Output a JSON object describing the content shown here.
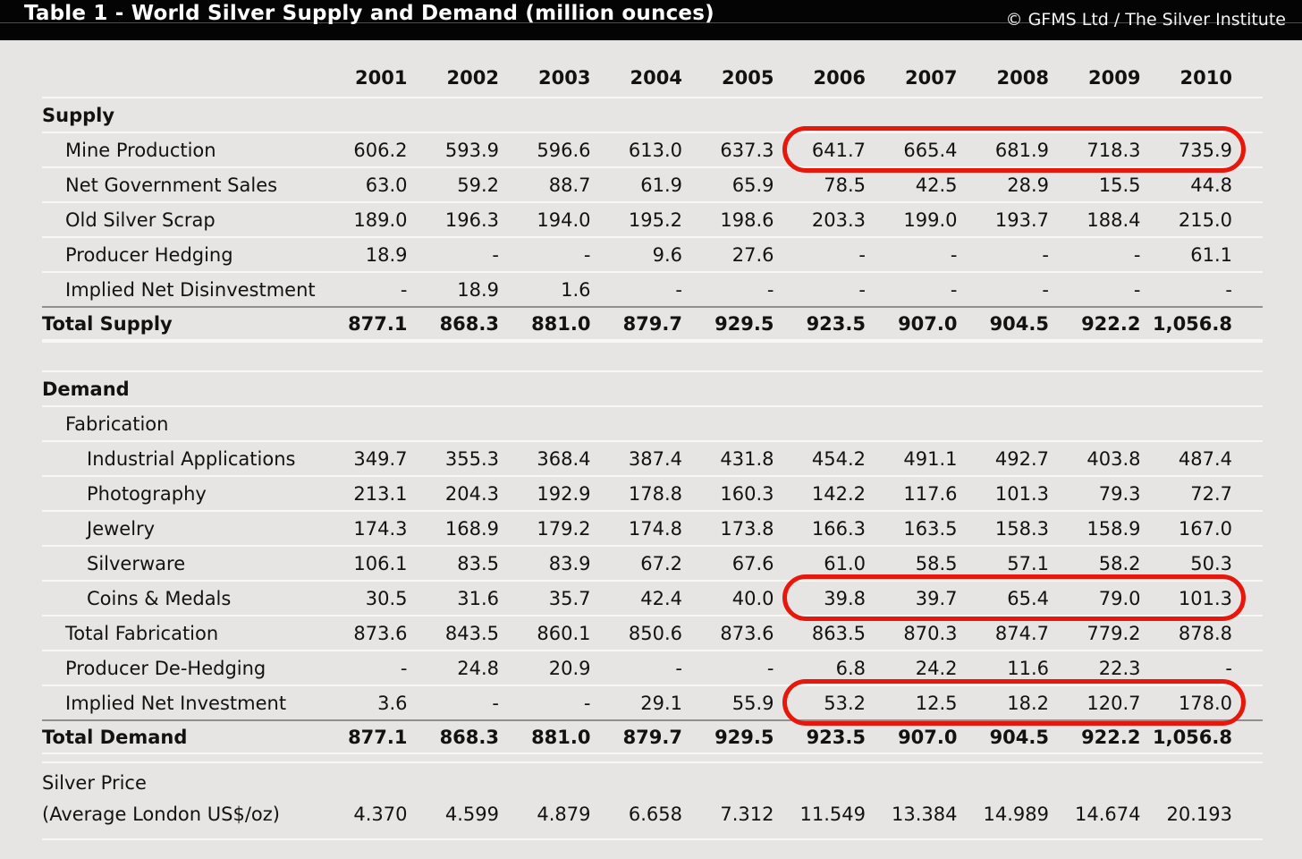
{
  "header": {
    "title": "Table 1 - World Silver Supply and Demand (million ounces)",
    "copyright": "© GFMS Ltd / The Silver Institute"
  },
  "highlight": {
    "color": "#e8170c",
    "note": "red oval annotations circle the 2006-2010 values of three rows",
    "circled_rows": [
      "Mine Production",
      "Coins & Medals",
      "Implied Net Investment"
    ]
  },
  "chart_data": {
    "type": "table",
    "title": "Table 1 - World Silver Supply and Demand (million ounces)",
    "columns": [
      "2001",
      "2002",
      "2003",
      "2004",
      "2005",
      "2006",
      "2007",
      "2008",
      "2009",
      "2010"
    ],
    "rows": [
      {
        "label": "Supply",
        "style": "section",
        "indent": 0,
        "values": []
      },
      {
        "label": "Mine Production",
        "style": "data",
        "indent": 1,
        "highlight_2006_2010": true,
        "values": [
          "606.2",
          "593.9",
          "596.6",
          "613.0",
          "637.3",
          "641.7",
          "665.4",
          "681.9",
          "718.3",
          "735.9"
        ]
      },
      {
        "label": "Net Government Sales",
        "style": "data",
        "indent": 1,
        "values": [
          "63.0",
          "59.2",
          "88.7",
          "61.9",
          "65.9",
          "78.5",
          "42.5",
          "28.9",
          "15.5",
          "44.8"
        ]
      },
      {
        "label": "Old Silver Scrap",
        "style": "data",
        "indent": 1,
        "values": [
          "189.0",
          "196.3",
          "194.0",
          "195.2",
          "198.6",
          "203.3",
          "199.0",
          "193.7",
          "188.4",
          "215.0"
        ]
      },
      {
        "label": "Producer Hedging",
        "style": "data",
        "indent": 1,
        "values": [
          "18.9",
          "-",
          "-",
          "9.6",
          "27.6",
          "-",
          "-",
          "-",
          "-",
          "61.1"
        ]
      },
      {
        "label": "Implied Net Disinvestment",
        "style": "data",
        "indent": 1,
        "values": [
          "-",
          "18.9",
          "1.6",
          "-",
          "-",
          "-",
          "-",
          "-",
          "-",
          "-"
        ]
      },
      {
        "label": "Total Supply",
        "style": "total",
        "indent": 0,
        "values": [
          "877.1",
          "868.3",
          "881.0",
          "879.7",
          "929.5",
          "923.5",
          "907.0",
          "904.5",
          "922.2",
          "1,056.8"
        ]
      },
      {
        "label": "",
        "style": "spacer",
        "indent": 0,
        "values": []
      },
      {
        "label": "Demand",
        "style": "section-septop",
        "indent": 0,
        "values": []
      },
      {
        "label": "Fabrication",
        "style": "data",
        "indent": 1,
        "values": []
      },
      {
        "label": "Industrial Applications",
        "style": "data",
        "indent": 2,
        "values": [
          "349.7",
          "355.3",
          "368.4",
          "387.4",
          "431.8",
          "454.2",
          "491.1",
          "492.7",
          "403.8",
          "487.4"
        ]
      },
      {
        "label": "Photography",
        "style": "data",
        "indent": 2,
        "values": [
          "213.1",
          "204.3",
          "192.9",
          "178.8",
          "160.3",
          "142.2",
          "117.6",
          "101.3",
          "79.3",
          "72.7"
        ]
      },
      {
        "label": "Jewelry",
        "style": "data",
        "indent": 2,
        "values": [
          "174.3",
          "168.9",
          "179.2",
          "174.8",
          "173.8",
          "166.3",
          "163.5",
          "158.3",
          "158.9",
          "167.0"
        ]
      },
      {
        "label": "Silverware",
        "style": "data",
        "indent": 2,
        "values": [
          "106.1",
          "83.5",
          "83.9",
          "67.2",
          "67.6",
          "61.0",
          "58.5",
          "57.1",
          "58.2",
          "50.3"
        ]
      },
      {
        "label": "Coins & Medals",
        "style": "data",
        "indent": 2,
        "highlight_2006_2010": true,
        "values": [
          "30.5",
          "31.6",
          "35.7",
          "42.4",
          "40.0",
          "39.8",
          "39.7",
          "65.4",
          "79.0",
          "101.3"
        ]
      },
      {
        "label": "Total Fabrication",
        "style": "data",
        "indent": 1,
        "values": [
          "873.6",
          "843.5",
          "860.1",
          "850.6",
          "873.6",
          "863.5",
          "870.3",
          "874.7",
          "779.2",
          "878.8"
        ]
      },
      {
        "label": "Producer De-Hedging",
        "style": "data",
        "indent": 1,
        "values": [
          "-",
          "24.8",
          "20.9",
          "-",
          "-",
          "6.8",
          "24.2",
          "11.6",
          "22.3",
          "-"
        ]
      },
      {
        "label": "Implied Net Investment",
        "style": "data",
        "indent": 1,
        "highlight_2006_2010": true,
        "values": [
          "3.6",
          "-",
          "-",
          "29.1",
          "55.9",
          "53.2",
          "12.5",
          "18.2",
          "120.7",
          "178.0"
        ]
      },
      {
        "label": "Total Demand",
        "style": "total",
        "indent": 0,
        "values": [
          "877.1",
          "868.3",
          "881.0",
          "879.7",
          "929.5",
          "923.5",
          "907.0",
          "904.5",
          "922.2",
          "1,056.8"
        ]
      }
    ],
    "price_row": {
      "label_line1": "Silver Price",
      "label_line2": "(Average London US$/oz)",
      "values": [
        "4.370",
        "4.599",
        "4.879",
        "6.658",
        "7.312",
        "11.549",
        "13.384",
        "14.989",
        "14.674",
        "20.193"
      ]
    }
  }
}
